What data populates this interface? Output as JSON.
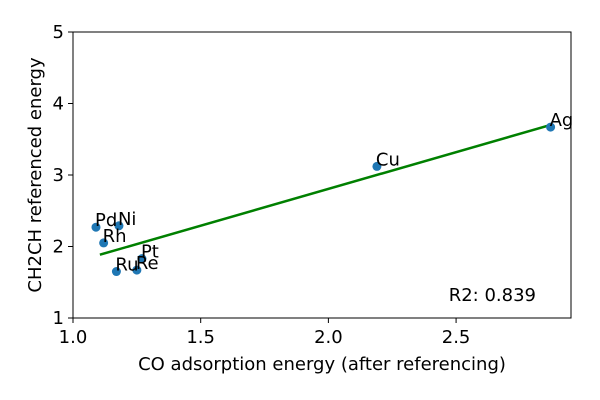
{
  "chart_data": {
    "type": "scatter",
    "title": "",
    "xlabel": "CO adsorption energy (after referencing)",
    "ylabel": "CH2CH referenced energy",
    "xlim": [
      1.0,
      2.95
    ],
    "ylim": [
      1.0,
      5.0
    ],
    "xticks": [
      1.0,
      1.5,
      2.0,
      2.5
    ],
    "xtick_labels": [
      "1.0",
      "1.5",
      "2.0",
      "2.5"
    ],
    "yticks": [
      1,
      2,
      3,
      4,
      5
    ],
    "ytick_labels": [
      "1",
      "2",
      "3",
      "4",
      "5"
    ],
    "grid": false,
    "points": [
      {
        "label": "Pd",
        "x": 1.09,
        "y": 2.27
      },
      {
        "label": "Ni",
        "x": 1.18,
        "y": 2.29
      },
      {
        "label": "Rh",
        "x": 1.12,
        "y": 2.05
      },
      {
        "label": "Pt",
        "x": 1.27,
        "y": 1.83
      },
      {
        "label": "Ru",
        "x": 1.17,
        "y": 1.65
      },
      {
        "label": "Re",
        "x": 1.25,
        "y": 1.67
      },
      {
        "label": "Cu",
        "x": 2.19,
        "y": 3.12
      },
      {
        "label": "Ag",
        "x": 2.87,
        "y": 3.67
      }
    ],
    "fit_line": {
      "x": [
        1.11,
        2.87
      ],
      "y": [
        1.89,
        3.7
      ]
    },
    "annotation": "R2: 0.839",
    "colors": {
      "points": "#1f77b4",
      "fit_line": "#008000",
      "axes": "#000000"
    }
  }
}
